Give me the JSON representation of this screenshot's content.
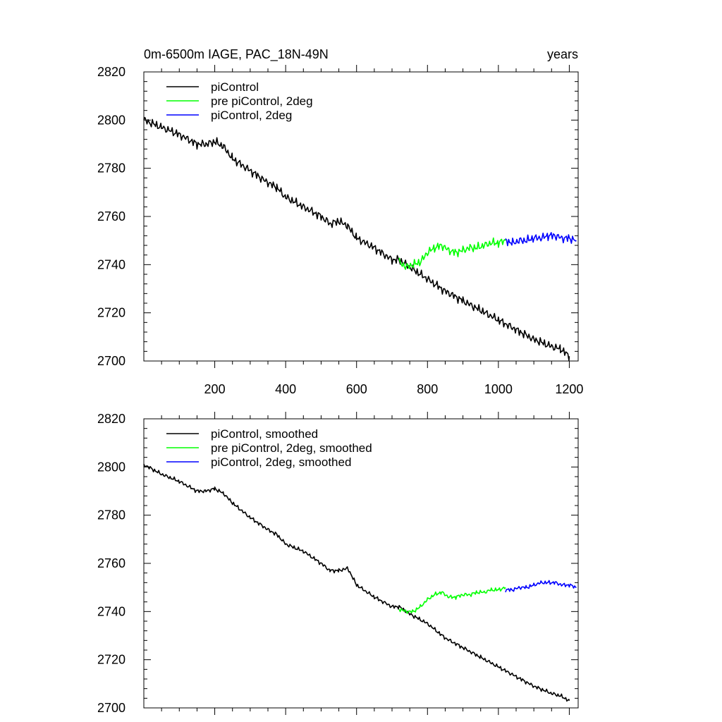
{
  "chart_data": [
    {
      "type": "line",
      "title": "0m-6500m IAGE, PAC_18N-49N",
      "units": "years",
      "xlim": [
        0,
        1225
      ],
      "ylim": [
        2700,
        2820
      ],
      "xticks": [
        200,
        400,
        600,
        800,
        1000,
        1200
      ],
      "xtick_labels": [
        "200",
        "400",
        "600",
        "800",
        "1000",
        "1200"
      ],
      "yticks": [
        2700,
        2720,
        2740,
        2760,
        2780,
        2800,
        2820
      ],
      "ytick_labels": [
        "2700",
        "2720",
        "2740",
        "2760",
        "2780",
        "2800",
        "2820"
      ],
      "legend_position": "top-left",
      "series": [
        {
          "name": "piControl",
          "color": "#000000",
          "x": [
            0,
            50,
            100,
            150,
            175,
            200,
            225,
            250,
            300,
            350,
            375,
            400,
            450,
            500,
            525,
            550,
            575,
            600,
            650,
            700,
            720,
            750,
            800,
            850,
            900,
            950,
            1000,
            1050,
            1100,
            1150,
            1175,
            1200
          ],
          "y": [
            2800,
            2797,
            2794,
            2790,
            2790,
            2791,
            2789,
            2784,
            2779,
            2774,
            2772,
            2768,
            2764,
            2760,
            2757,
            2758,
            2756,
            2751,
            2747,
            2742,
            2742,
            2739,
            2734,
            2729,
            2725,
            2721,
            2717,
            2713,
            2709,
            2706,
            2705,
            2702
          ]
        },
        {
          "name": "pre piControl, 2deg",
          "color": "#00ff00",
          "x": [
            720,
            740,
            760,
            780,
            800,
            820,
            840,
            860,
            880,
            900,
            920,
            940,
            960,
            980,
            1000,
            1020
          ],
          "y": [
            2741,
            2739,
            2740,
            2741,
            2745,
            2747,
            2748,
            2746,
            2745,
            2746,
            2747,
            2747,
            2748,
            2749,
            2749,
            2750
          ]
        },
        {
          "name": "piControl, 2deg",
          "color": "#0000ff",
          "x": [
            1020,
            1040,
            1060,
            1080,
            1100,
            1120,
            1140,
            1160,
            1180,
            1200,
            1220
          ],
          "y": [
            2750,
            2749,
            2750,
            2750,
            2751,
            2751,
            2752,
            2752,
            2751,
            2751,
            2750
          ]
        }
      ]
    },
    {
      "type": "line",
      "xlim": [
        0,
        1225
      ],
      "ylim": [
        2700,
        2820
      ],
      "xticks": [
        200,
        400,
        600,
        800,
        1000,
        1200
      ],
      "yticks": [
        2700,
        2720,
        2740,
        2760,
        2780,
        2800,
        2820
      ],
      "ytick_labels": [
        "2700",
        "2720",
        "2740",
        "2760",
        "2780",
        "2800",
        "2820"
      ],
      "legend_position": "top-left",
      "series": [
        {
          "name": "piControl, smoothed",
          "color": "#000000",
          "x": [
            0,
            50,
            100,
            150,
            175,
            200,
            225,
            250,
            300,
            350,
            375,
            400,
            450,
            500,
            525,
            550,
            575,
            600,
            650,
            700,
            720,
            750,
            800,
            850,
            900,
            950,
            1000,
            1050,
            1100,
            1150,
            1175,
            1200
          ],
          "y": [
            2801,
            2797,
            2794,
            2790,
            2790,
            2791,
            2789,
            2785,
            2779,
            2774,
            2772,
            2768,
            2765,
            2760,
            2757,
            2757,
            2758,
            2751,
            2746,
            2742,
            2742,
            2739,
            2735,
            2729,
            2725,
            2721,
            2717,
            2713,
            2709,
            2706,
            2705,
            2703
          ]
        },
        {
          "name": "pre piControl, 2deg, smoothed",
          "color": "#00ff00",
          "x": [
            720,
            740,
            760,
            780,
            800,
            820,
            840,
            860,
            880,
            900,
            920,
            940,
            960,
            980,
            1000,
            1020
          ],
          "y": [
            2741,
            2740,
            2740,
            2742,
            2745,
            2747,
            2748,
            2746,
            2746,
            2747,
            2747,
            2748,
            2748,
            2749,
            2749,
            2750
          ]
        },
        {
          "name": "piControl, 2deg, smoothed",
          "color": "#0000ff",
          "x": [
            1020,
            1040,
            1060,
            1080,
            1100,
            1120,
            1140,
            1160,
            1180,
            1200,
            1220
          ],
          "y": [
            2749,
            2749,
            2750,
            2750,
            2751,
            2752,
            2752,
            2752,
            2751,
            2751,
            2750
          ]
        }
      ]
    }
  ]
}
